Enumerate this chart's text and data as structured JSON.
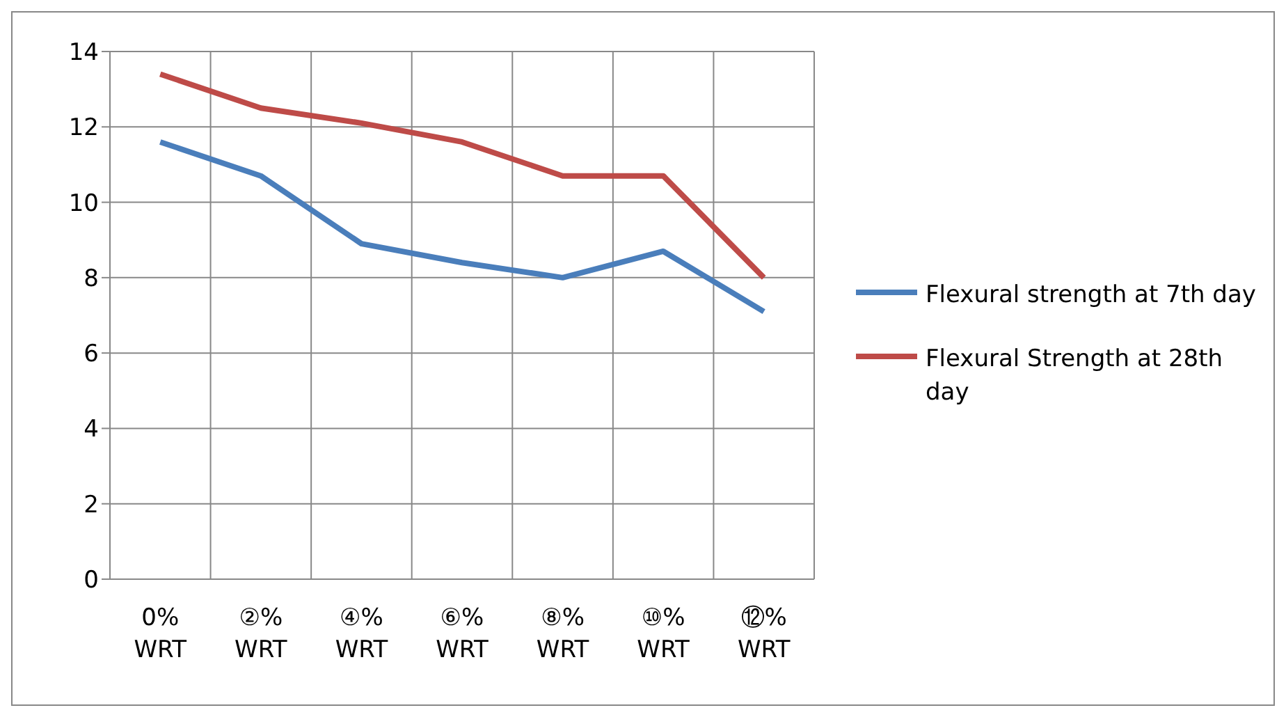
{
  "chart_data": {
    "type": "line",
    "categories": [
      "0%\nWRT",
      "②%\nWRT",
      "④%\nWRT",
      "⑥%\nWRT",
      "⑧%\nWRT",
      "⑩%\nWRT",
      "⑫%\nWRT"
    ],
    "series": [
      {
        "name": "Flexural strength at 7th day",
        "color": "#4a7ebb",
        "values": [
          11.6,
          10.7,
          8.9,
          8.4,
          8.0,
          8.7,
          7.1
        ]
      },
      {
        "name": "Flexural Strength at 28th day",
        "color": "#be4b48",
        "values": [
          13.4,
          12.5,
          12.1,
          11.6,
          10.7,
          10.7,
          8.0
        ]
      }
    ],
    "ylim": [
      0,
      14
    ],
    "yticks": [
      0,
      2,
      4,
      6,
      8,
      10,
      12,
      14
    ],
    "grid": true,
    "legend": "right",
    "marker": "none",
    "line_style": "solid"
  }
}
